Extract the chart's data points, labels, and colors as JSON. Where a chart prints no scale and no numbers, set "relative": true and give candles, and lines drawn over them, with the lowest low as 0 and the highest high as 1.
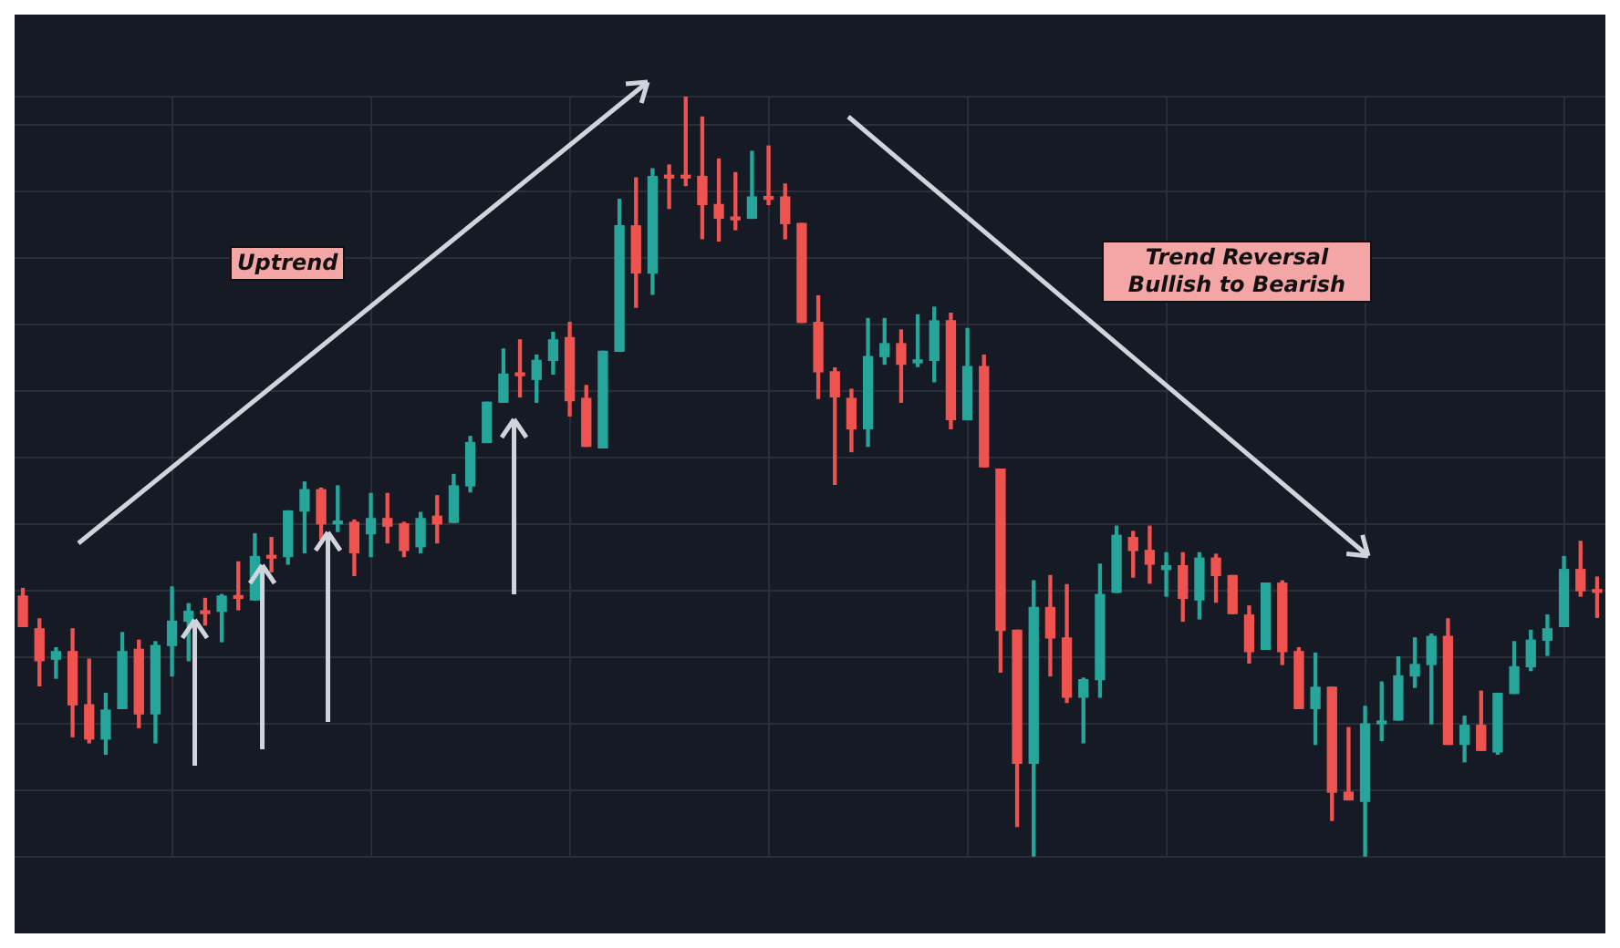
{
  "chart_data": {
    "type": "candlestick",
    "relative": true,
    "grid": true,
    "annotations": [
      "Uptrend",
      "Trend Reversal Bullish to Bearish"
    ],
    "categories": [
      null,
      null,
      null,
      null,
      null,
      null,
      null,
      null,
      null,
      null,
      null,
      null,
      null,
      null,
      null,
      null,
      null,
      null,
      null,
      null,
      null,
      null,
      null,
      null,
      null,
      null,
      null,
      null,
      null,
      null,
      null,
      null,
      null,
      null,
      null,
      null,
      null,
      null,
      null,
      null,
      null,
      null,
      null,
      null,
      null,
      null,
      null,
      null,
      null,
      null,
      null,
      null,
      null,
      null,
      null,
      null,
      null,
      null,
      null,
      null,
      null,
      null,
      null,
      null,
      null,
      null,
      null,
      null,
      null,
      null,
      null,
      null,
      null,
      null,
      null,
      null,
      null,
      null,
      null,
      null,
      null,
      null,
      null,
      null,
      null,
      null,
      null,
      null,
      null,
      null,
      null,
      null,
      null,
      null,
      null,
      null
    ],
    "ohlc": [
      [
        0.343,
        0.353,
        0.303,
        0.303
      ],
      [
        0.3,
        0.313,
        0.225,
        0.258
      ],
      [
        0.26,
        0.275,
        0.235,
        0.27
      ],
      [
        0.27,
        0.3,
        0.158,
        0.2
      ],
      [
        0.2,
        0.26,
        0.15,
        0.155
      ],
      [
        0.155,
        0.215,
        0.135,
        0.193
      ],
      [
        0.195,
        0.295,
        0.195,
        0.27
      ],
      [
        0.273,
        0.285,
        0.17,
        0.188
      ],
      [
        0.188,
        0.283,
        0.15,
        0.278
      ],
      [
        0.278,
        0.355,
        0.238,
        0.31
      ],
      [
        0.31,
        0.333,
        0.258,
        0.323
      ],
      [
        0.323,
        0.34,
        0.305,
        0.32
      ],
      [
        0.323,
        0.345,
        0.283,
        0.343
      ],
      [
        0.343,
        0.388,
        0.325,
        0.34
      ],
      [
        0.338,
        0.425,
        0.338,
        0.395
      ],
      [
        0.395,
        0.42,
        0.375,
        0.393
      ],
      [
        0.395,
        0.455,
        0.385,
        0.455
      ],
      [
        0.455,
        0.493,
        0.4,
        0.483
      ],
      [
        0.483,
        0.485,
        0.418,
        0.438
      ],
      [
        0.438,
        0.488,
        0.428,
        0.44
      ],
      [
        0.44,
        0.443,
        0.37,
        0.4
      ],
      [
        0.425,
        0.478,
        0.395,
        0.445
      ],
      [
        0.445,
        0.478,
        0.413,
        0.435
      ],
      [
        0.438,
        0.44,
        0.395,
        0.403
      ],
      [
        0.408,
        0.453,
        0.4,
        0.445
      ],
      [
        0.448,
        0.475,
        0.413,
        0.438
      ],
      [
        0.44,
        0.503,
        0.44,
        0.488
      ],
      [
        0.488,
        0.553,
        0.48,
        0.545
      ],
      [
        0.545,
        0.598,
        0.545,
        0.598
      ],
      [
        0.598,
        0.668,
        0.598,
        0.635
      ],
      [
        0.635,
        0.68,
        0.605,
        0.633
      ],
      [
        0.628,
        0.66,
        0.598,
        0.653
      ],
      [
        0.653,
        0.69,
        0.635,
        0.68
      ],
      [
        0.683,
        0.703,
        0.58,
        0.6
      ],
      [
        0.603,
        0.62,
        0.54,
        0.54
      ],
      [
        0.538,
        0.665,
        0.538,
        0.665
      ],
      [
        0.665,
        0.865,
        0.665,
        0.83
      ],
      [
        0.83,
        0.893,
        0.723,
        0.768
      ],
      [
        0.768,
        0.905,
        0.74,
        0.895
      ],
      [
        0.895,
        0.91,
        0.853,
        0.893
      ],
      [
        0.895,
        1,
        0.883,
        0.893
      ],
      [
        0.895,
        0.973,
        0.813,
        0.858
      ],
      [
        0.858,
        0.918,
        0.81,
        0.84
      ],
      [
        0.84,
        0.9,
        0.825,
        0.838
      ],
      [
        0.84,
        0.928,
        0.84,
        0.868
      ],
      [
        0.868,
        0.935,
        0.858,
        0.865
      ],
      [
        0.868,
        0.885,
        0.813,
        0.833
      ],
      [
        0.833,
        0.833,
        0.703,
        0.703
      ],
      [
        0.703,
        0.738,
        0.603,
        0.638
      ],
      [
        0.638,
        0.643,
        0.49,
        0.605
      ],
      [
        0.603,
        0.615,
        0.533,
        0.563
      ],
      [
        0.563,
        0.708,
        0.54,
        0.658
      ],
      [
        0.658,
        0.708,
        0.648,
        0.675
      ],
      [
        0.675,
        0.693,
        0.598,
        0.648
      ],
      [
        0.65,
        0.713,
        0.645,
        0.653
      ],
      [
        0.653,
        0.723,
        0.625,
        0.705
      ],
      [
        0.705,
        0.715,
        0.563,
        0.575
      ],
      [
        0.575,
        0.695,
        0.575,
        0.645
      ],
      [
        0.645,
        0.66,
        0.513,
        0.513
      ],
      [
        0.51,
        0.51,
        0.243,
        0.298
      ],
      [
        0.298,
        0.298,
        0.04,
        0.123
      ],
      [
        0.123,
        0.363,
        0,
        0.328
      ],
      [
        0.328,
        0.37,
        0.238,
        0.288
      ],
      [
        0.288,
        0.358,
        0.203,
        0.21
      ],
      [
        0.21,
        0.235,
        0.15,
        0.233
      ],
      [
        0.233,
        0.385,
        0.21,
        0.345
      ],
      [
        0.348,
        0.435,
        0.348,
        0.423
      ],
      [
        0.42,
        0.428,
        0.368,
        0.403
      ],
      [
        0.403,
        0.435,
        0.36,
        0.385
      ],
      [
        0.378,
        0.4,
        0.343,
        0.383
      ],
      [
        0.383,
        0.4,
        0.31,
        0.34
      ],
      [
        0.338,
        0.4,
        0.313,
        0.393
      ],
      [
        0.393,
        0.398,
        0.335,
        0.37
      ],
      [
        0.37,
        0.37,
        0.32,
        0.32
      ],
      [
        0.318,
        0.33,
        0.255,
        0.27
      ],
      [
        0.273,
        0.36,
        0.273,
        0.36
      ],
      [
        0.36,
        0.363,
        0.253,
        0.27
      ],
      [
        0.27,
        0.275,
        0.195,
        0.195
      ],
      [
        0.195,
        0.268,
        0.148,
        0.223
      ],
      [
        0.223,
        0.223,
        0.048,
        0.085
      ],
      [
        0.085,
        0.17,
        0.075,
        0.075
      ],
      [
        0.073,
        0.198,
        0,
        0.175
      ],
      [
        0.175,
        0.23,
        0.153,
        0.178
      ],
      [
        0.18,
        0.263,
        0.18,
        0.238
      ],
      [
        0.238,
        0.288,
        0.223,
        0.253
      ],
      [
        0.253,
        0.293,
        0.175,
        0.29
      ],
      [
        0.29,
        0.313,
        0.148,
        0.148
      ],
      [
        0.148,
        0.185,
        0.125,
        0.173
      ],
      [
        0.173,
        0.218,
        0.14,
        0.14
      ],
      [
        0.138,
        0.215,
        0.135,
        0.215
      ],
      [
        0.215,
        0.283,
        0.215,
        0.25
      ],
      [
        0.25,
        0.298,
        0.245,
        0.285
      ],
      [
        0.285,
        0.318,
        0.265,
        0.3
      ],
      [
        0.303,
        0.395,
        0.303,
        0.378
      ],
      [
        0.378,
        0.415,
        0.343,
        0.35
      ],
      [
        0.35,
        0.368,
        0.315,
        0.348
      ]
    ],
    "colors": [
      "#ef5350",
      "#ef5350",
      "#26a69a",
      "#ef5350",
      "#ef5350",
      "#26a69a",
      "#26a69a",
      "#ef5350",
      "#26a69a",
      "#26a69a",
      "#26a69a",
      "#ef5350",
      "#26a69a",
      "#ef5350",
      "#26a69a",
      "#ef5350",
      "#26a69a",
      "#26a69a",
      "#ef5350",
      "#26a69a",
      "#ef5350",
      "#26a69a",
      "#ef5350",
      "#ef5350",
      "#26a69a",
      "#ef5350",
      "#26a69a",
      "#26a69a",
      "#26a69a",
      "#26a69a",
      "#ef5350",
      "#26a69a",
      "#26a69a",
      "#ef5350",
      "#ef5350",
      "#26a69a",
      "#26a69a",
      "#ef5350",
      "#26a69a",
      "#ef5350",
      "#ef5350",
      "#ef5350",
      "#ef5350",
      "#ef5350",
      "#26a69a",
      "#ef5350",
      "#ef5350",
      "#ef5350",
      "#ef5350",
      "#ef5350",
      "#ef5350",
      "#26a69a",
      "#26a69a",
      "#ef5350",
      "#26a69a",
      "#26a69a",
      "#ef5350",
      "#26a69a",
      "#ef5350",
      "#ef5350",
      "#ef5350",
      "#26a69a",
      "#ef5350",
      "#ef5350",
      "#26a69a",
      "#26a69a",
      "#26a69a",
      "#ef5350",
      "#ef5350",
      "#26a69a",
      "#ef5350",
      "#26a69a",
      "#ef5350",
      "#ef5350",
      "#ef5350",
      "#26a69a",
      "#ef5350",
      "#ef5350",
      "#26a69a",
      "#ef5350",
      "#ef5350",
      "#26a69a",
      "#26a69a",
      "#26a69a",
      "#26a69a",
      "#26a69a",
      "#ef5350",
      "#26a69a",
      "#ef5350",
      "#26a69a",
      "#26a69a",
      "#26a69a",
      "#26a69a",
      "#26a69a",
      "#ef5350",
      "#ef5350"
    ]
  }
}
